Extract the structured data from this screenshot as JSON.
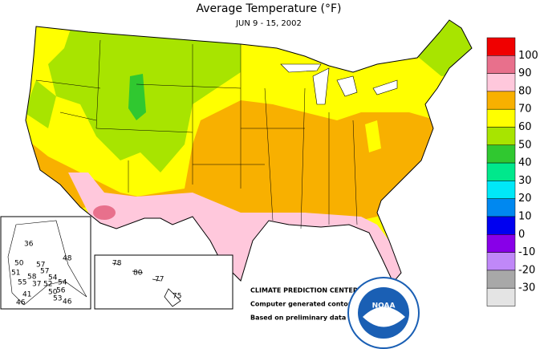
{
  "header": {
    "title": "Average Temperature (°F)",
    "subtitle": "JUN 9 - 15, 2002"
  },
  "legend": {
    "colors": [
      "#f00000",
      "#e8708c",
      "#ffc8dc",
      "#f8b000",
      "#ffff00",
      "#a8e400",
      "#30c830",
      "#00e88c",
      "#00e8f8",
      "#0088f0",
      "#0000f0",
      "#8800e8",
      "#c088f8",
      "#a8a8a8",
      "#e4e4e4"
    ],
    "labels": [
      100,
      90,
      80,
      70,
      60,
      50,
      40,
      30,
      20,
      10,
      0,
      -10,
      -20,
      -30
    ]
  },
  "alaska": [
    36,
    50,
    57,
    51,
    58,
    57,
    54,
    55,
    37,
    52,
    54,
    48,
    41,
    50,
    56,
    46,
    53,
    46
  ],
  "hawaii": [
    78,
    80,
    77,
    75
  ],
  "credits": [
    "CLIMATE PREDICTION CENTER, NOAA",
    "Computer generated contours",
    "Based on preliminary data"
  ],
  "logo": "NOAA"
}
